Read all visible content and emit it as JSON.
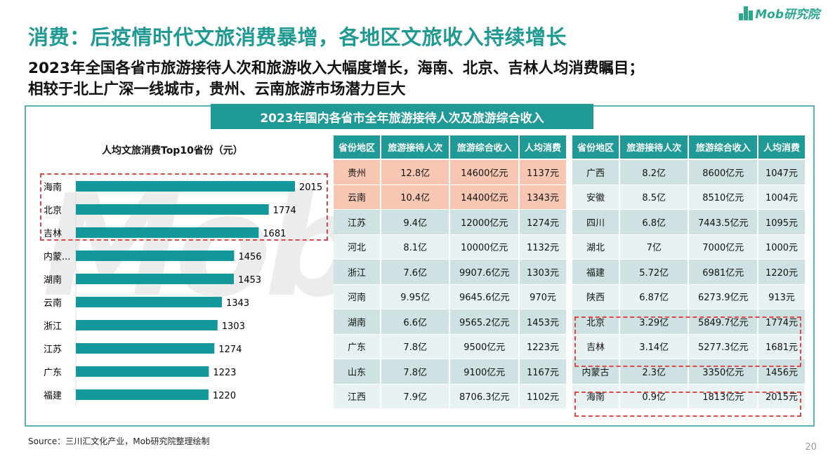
{
  "logo": {
    "text": "Mob研究院"
  },
  "header": {
    "title": "消费：后疫情时代文旅消费暴增，各地区文旅收入持续增长",
    "subtitle_1": "2023年全国各省市旅游接待人次和旅游收入大幅度增长，海南、北京、吉林人均消费瞩目；",
    "subtitle_2": "相较于北上广深一线城市，贵州、云南旅游市场潜力巨大"
  },
  "banner": "2023年国内各省市全年旅游接待人次及旅游综合收入",
  "chart_data": {
    "type": "bar",
    "orientation": "horizontal",
    "title": "人均文旅消费Top10省份（元）",
    "categories": [
      "海南",
      "北京",
      "吉林",
      "内蒙...",
      "湖南",
      "云南",
      "浙江",
      "江苏",
      "广东",
      "福建"
    ],
    "values": [
      2015,
      1774,
      1681,
      1456,
      1453,
      1343,
      1303,
      1274,
      1223,
      1220
    ],
    "bar_color": "#12979a",
    "highlight": [
      "海南",
      "北京",
      "吉林"
    ]
  },
  "table_headers": [
    "省份地区",
    "旅游接待人次",
    "旅游综合收入",
    "人均消费"
  ],
  "table_left": [
    [
      "贵州",
      "12.8亿",
      "14600亿元",
      "1137元"
    ],
    [
      "云南",
      "10.4亿",
      "14400亿元",
      "1343元"
    ],
    [
      "江苏",
      "9.4亿",
      "12000亿元",
      "1274元"
    ],
    [
      "河北",
      "8.1亿",
      "10000亿元",
      "1132元"
    ],
    [
      "浙江",
      "7.6亿",
      "9907.6亿元",
      "1303元"
    ],
    [
      "河南",
      "9.95亿",
      "9645.6亿元",
      "970元"
    ],
    [
      "湖南",
      "6.6亿",
      "9565.2亿元",
      "1453元"
    ],
    [
      "广东",
      "7.8亿",
      "9500亿元",
      "1223元"
    ],
    [
      "山东",
      "7.8亿",
      "9100亿元",
      "1167元"
    ],
    [
      "江西",
      "7.9亿",
      "8706.3亿元",
      "1102元"
    ]
  ],
  "table_right": [
    [
      "广西",
      "8.2亿",
      "8600亿元",
      "1047元"
    ],
    [
      "安徽",
      "8.5亿",
      "8510亿元",
      "1004元"
    ],
    [
      "四川",
      "6.8亿",
      "7443.5亿元",
      "1095元"
    ],
    [
      "湖北",
      "7亿",
      "7000亿元",
      "1000元"
    ],
    [
      "福建",
      "5.72亿",
      "6981亿元",
      "1220元"
    ],
    [
      "陕西",
      "6.87亿",
      "6273.9亿元",
      "913元"
    ],
    [
      "北京",
      "3.29亿",
      "5849.7亿元",
      "1774元"
    ],
    [
      "吉林",
      "3.14亿",
      "5277.3亿元",
      "1681元"
    ],
    [
      "内蒙古",
      "2.3亿",
      "3350亿元",
      "1456元"
    ],
    [
      "海南",
      "0.9亿",
      "1813亿元",
      "2015元"
    ]
  ],
  "colors": {
    "accent": "#1f9a96",
    "highlight_row": "#f8c7b3",
    "dash": "#e04848"
  },
  "footer": {
    "source": "Source：三川汇文化产业，Mob研究院整理绘制",
    "page": "20"
  }
}
